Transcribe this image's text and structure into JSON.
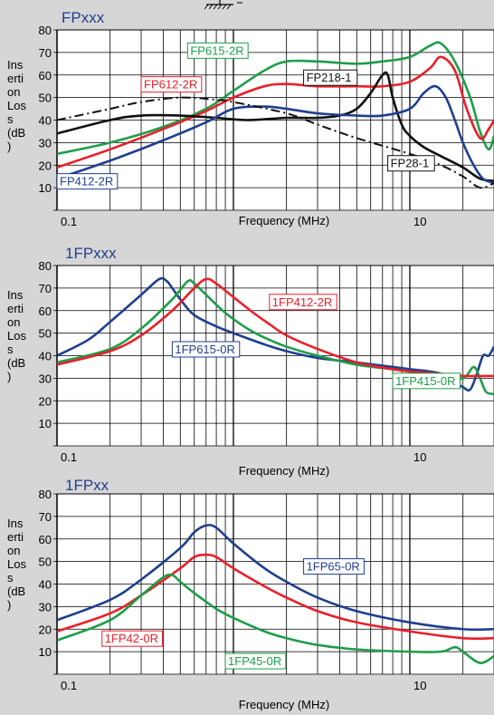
{
  "chart_data": [
    {
      "type": "line",
      "title": "FPxxx",
      "xlabel": "Frequency (MHz)",
      "ylabel": "Insertion Loss (dB)",
      "ylabel_lines": [
        "Ins",
        "erti",
        "on",
        "Los",
        "s",
        "(dB",
        ")"
      ],
      "xscale": "log",
      "xlim": [
        0.1,
        30
      ],
      "ylim": [
        0,
        80
      ],
      "yticks": [
        10,
        20,
        30,
        40,
        50,
        60,
        70,
        80
      ],
      "xtick_labels": [
        {
          "value": 0.1,
          "label": "0.1"
        },
        {
          "value": 10,
          "label": "10"
        }
      ],
      "grid": true,
      "series": [
        {
          "name": "FP615-2R",
          "color": "#1e9e48",
          "dash": "solid",
          "x": [
            0.1,
            0.2,
            0.4,
            0.7,
            1,
            1.5,
            2,
            3,
            5,
            7,
            10,
            13,
            15,
            18,
            22,
            25,
            28,
            30
          ],
          "y": [
            25,
            30,
            37,
            45,
            53,
            62,
            66,
            66,
            65,
            66,
            68,
            73,
            74,
            66,
            50,
            35,
            27,
            33
          ]
        },
        {
          "name": "FP612-2R",
          "color": "#e8202a",
          "dash": "solid",
          "x": [
            0.1,
            0.2,
            0.4,
            0.7,
            1,
            1.5,
            2,
            3,
            5,
            7,
            10,
            13,
            15,
            18,
            21,
            25,
            28,
            30
          ],
          "y": [
            19,
            27,
            36,
            44,
            50,
            55,
            56,
            55,
            55,
            55,
            57,
            63,
            68,
            62,
            45,
            32,
            36,
            40
          ]
        },
        {
          "name": "FP218-1",
          "color": "#111111",
          "dash": "solid",
          "x": [
            0.1,
            0.2,
            0.3,
            0.5,
            0.8,
            1.2,
            2,
            3,
            4,
            5,
            6,
            7,
            7.5,
            8,
            9,
            10,
            12,
            15,
            20,
            25,
            30
          ],
          "y": [
            34,
            40,
            42,
            42,
            41,
            40,
            41,
            41,
            42,
            45,
            52,
            60,
            60,
            50,
            38,
            33,
            28,
            24,
            19,
            14,
            13
          ]
        },
        {
          "name": "FP412-2R",
          "color": "#1f3f8f",
          "dash": "solid",
          "x": [
            0.1,
            0.2,
            0.4,
            0.7,
            1,
            1.5,
            2,
            3,
            5,
            7,
            10,
            12,
            14,
            16,
            18,
            20,
            23,
            26,
            30
          ],
          "y": [
            14,
            22,
            31,
            39,
            45,
            46,
            45,
            43,
            42,
            42,
            45,
            52,
            55,
            50,
            40,
            30,
            20,
            14,
            12
          ]
        },
        {
          "name": "FP28-1",
          "color": "#111111",
          "dash": "dashdot",
          "x": [
            0.1,
            0.2,
            0.3,
            0.5,
            0.8,
            1,
            2,
            3,
            5,
            10,
            15,
            20,
            25,
            30
          ],
          "y": [
            40,
            45,
            48,
            50,
            49,
            48,
            43,
            38,
            32,
            25,
            20,
            15,
            10,
            12
          ]
        }
      ],
      "labels": [
        {
          "text": "FP615-2R",
          "series": "FP615-2R",
          "x": 0.55,
          "y": 69
        },
        {
          "text": "FP612-2R",
          "series": "FP612-2R",
          "x": 0.3,
          "y": 54
        },
        {
          "text": "FP218-1",
          "series": "FP218-1",
          "x": 2.5,
          "y": 57
        },
        {
          "text": "FP28-1",
          "series": "FP28-1",
          "x": 7.5,
          "y": 19
        },
        {
          "text": "FP412-2R",
          "series": "FP412-2R",
          "x": 0.1,
          "y": 11
        }
      ]
    },
    {
      "type": "line",
      "title": "1FPxxx",
      "xlabel": "Frequency (MHz)",
      "ylabel": "Insertion Loss (dB)",
      "ylabel_lines": [
        "Ins",
        "erti",
        "on",
        "Los",
        "s",
        "(dB",
        ")"
      ],
      "xscale": "log",
      "xlim": [
        0.1,
        30
      ],
      "ylim": [
        0,
        80
      ],
      "yticks": [
        10,
        20,
        30,
        40,
        50,
        60,
        70,
        80
      ],
      "xtick_labels": [
        {
          "value": 0.1,
          "label": "0.1"
        },
        {
          "value": 10,
          "label": "10"
        }
      ],
      "grid": true,
      "series": [
        {
          "name": "1FP615-0R",
          "color": "#1f3f8f",
          "dash": "solid",
          "x": [
            0.1,
            0.15,
            0.2,
            0.3,
            0.38,
            0.42,
            0.45,
            0.5,
            0.6,
            0.8,
            1,
            1.5,
            2,
            3,
            5,
            8,
            10,
            15,
            20,
            22,
            24,
            26,
            28,
            30
          ],
          "y": [
            40,
            47,
            55,
            67,
            74,
            73,
            70,
            65,
            58,
            53,
            50,
            45,
            42,
            39,
            37,
            35,
            34,
            32,
            26,
            25,
            32,
            40,
            40,
            44
          ]
        },
        {
          "name": "1FP415-0R",
          "color": "#1e9e48",
          "dash": "solid",
          "x": [
            0.1,
            0.2,
            0.3,
            0.45,
            0.55,
            0.6,
            0.7,
            0.9,
            1.2,
            1.5,
            2,
            3,
            5,
            8,
            10,
            15,
            20,
            23,
            25,
            27,
            30
          ],
          "y": [
            37,
            43,
            52,
            65,
            73,
            72,
            67,
            59,
            52,
            48,
            44,
            40,
            36,
            34,
            33,
            31,
            30,
            35,
            30,
            24,
            23
          ]
        },
        {
          "name": "1FP412-2R",
          "color": "#e8202a",
          "dash": "solid",
          "x": [
            0.1,
            0.2,
            0.3,
            0.45,
            0.6,
            0.7,
            0.8,
            1,
            1.3,
            1.6,
            2,
            3,
            5,
            8,
            10,
            15,
            20,
            25,
            30
          ],
          "y": [
            36,
            42,
            49,
            60,
            70,
            74,
            72,
            66,
            59,
            54,
            49,
            43,
            37,
            34,
            33,
            32,
            31,
            31,
            31
          ]
        }
      ],
      "labels": [
        {
          "text": "1FP412-2R",
          "series": "1FP412-2R",
          "x": 1.6,
          "y": 62
        },
        {
          "text": "1FP615-0R",
          "series": "1FP615-0R",
          "x": 0.45,
          "y": 41
        },
        {
          "text": "1FP415-0R",
          "series": "1FP415-0R",
          "x": 8,
          "y": 27
        }
      ]
    },
    {
      "type": "line",
      "title": "1FPxx",
      "xlabel": "Frequency (MHz)",
      "ylabel": "Insertion Loss (dB)",
      "ylabel_lines": [
        "Ins",
        "erti",
        "on",
        "Los",
        "s",
        "(dB",
        ")"
      ],
      "xscale": "log",
      "xlim": [
        0.1,
        30
      ],
      "ylim": [
        0,
        80
      ],
      "yticks": [
        10,
        20,
        30,
        40,
        50,
        60,
        70,
        80
      ],
      "xtick_labels": [
        {
          "value": 0.1,
          "label": "0.1"
        },
        {
          "value": 10,
          "label": "10"
        }
      ],
      "grid": true,
      "series": [
        {
          "name": "1FP65-0R",
          "color": "#1f3f8f",
          "dash": "solid",
          "x": [
            0.1,
            0.2,
            0.3,
            0.5,
            0.6,
            0.7,
            0.8,
            1,
            1.5,
            2,
            3,
            5,
            10,
            20,
            30
          ],
          "y": [
            24,
            33,
            42,
            56,
            63,
            66,
            65,
            58,
            47,
            41,
            34,
            28,
            23,
            20,
            20
          ]
        },
        {
          "name": "1FP42-0R",
          "color": "#e8202a",
          "dash": "solid",
          "x": [
            0.1,
            0.2,
            0.3,
            0.5,
            0.6,
            0.7,
            0.8,
            1,
            1.5,
            2,
            3,
            5,
            10,
            20,
            30
          ],
          "y": [
            19,
            27,
            35,
            47,
            52,
            53,
            52,
            47,
            39,
            34,
            28,
            23,
            19,
            16,
            16
          ]
        },
        {
          "name": "1FP45-0R",
          "color": "#1e9e48",
          "dash": "solid",
          "x": [
            0.1,
            0.2,
            0.3,
            0.4,
            0.45,
            0.5,
            0.6,
            0.8,
            1,
            1.5,
            2,
            3,
            5,
            10,
            15,
            18,
            20,
            25,
            30
          ],
          "y": [
            15,
            24,
            35,
            43,
            44,
            41,
            36,
            29,
            25,
            19,
            16,
            13,
            11,
            10,
            10,
            12,
            10,
            5,
            8
          ]
        }
      ],
      "labels": [
        {
          "text": "1FP65-0R",
          "series": "1FP65-0R",
          "x": 2.5,
          "y": 46
        },
        {
          "text": "1FP42-0R",
          "series": "1FP42-0R",
          "x": 0.18,
          "y": 14
        },
        {
          "text": "1FP45-0R",
          "series": "1FP45-0R",
          "x": 0.9,
          "y": 4
        }
      ]
    }
  ]
}
